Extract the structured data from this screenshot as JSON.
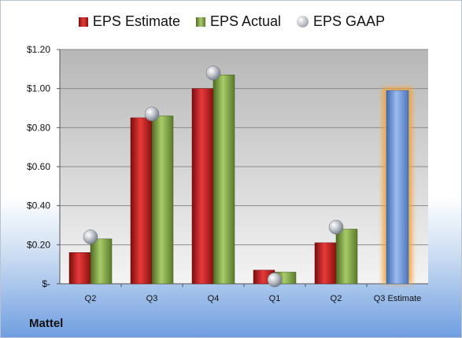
{
  "company": "Mattel",
  "legend": {
    "estimate": "EPS Estimate",
    "actual": "EPS Actual",
    "gaap": "EPS GAAP"
  },
  "colors": {
    "estimate": "#d42a2a",
    "actual": "#8db356",
    "gaap": "#b8bcc4",
    "forecast": "#6f9ad8",
    "forecast_glow": "#f5a33a"
  },
  "chart_data": {
    "type": "bar",
    "categories": [
      "Q2",
      "Q3",
      "Q4",
      "Q1",
      "Q2",
      "Q3 Estimate"
    ],
    "series": [
      {
        "name": "EPS Estimate",
        "values": [
          0.16,
          0.85,
          1.0,
          0.07,
          0.21,
          null
        ]
      },
      {
        "name": "EPS Actual",
        "values": [
          0.23,
          0.86,
          1.07,
          0.06,
          0.28,
          null
        ]
      },
      {
        "name": "EPS GAAP",
        "values": [
          0.24,
          0.87,
          1.08,
          0.02,
          0.29,
          null
        ]
      }
    ],
    "forecast": {
      "category": "Q3 Estimate",
      "value": 0.99
    },
    "yticks": [
      "$-",
      "$0.20",
      "$0.40",
      "$0.60",
      "$0.80",
      "$1.00",
      "$1.20"
    ],
    "ylim": [
      0,
      1.2
    ],
    "grid": true,
    "legend_position": "top"
  }
}
